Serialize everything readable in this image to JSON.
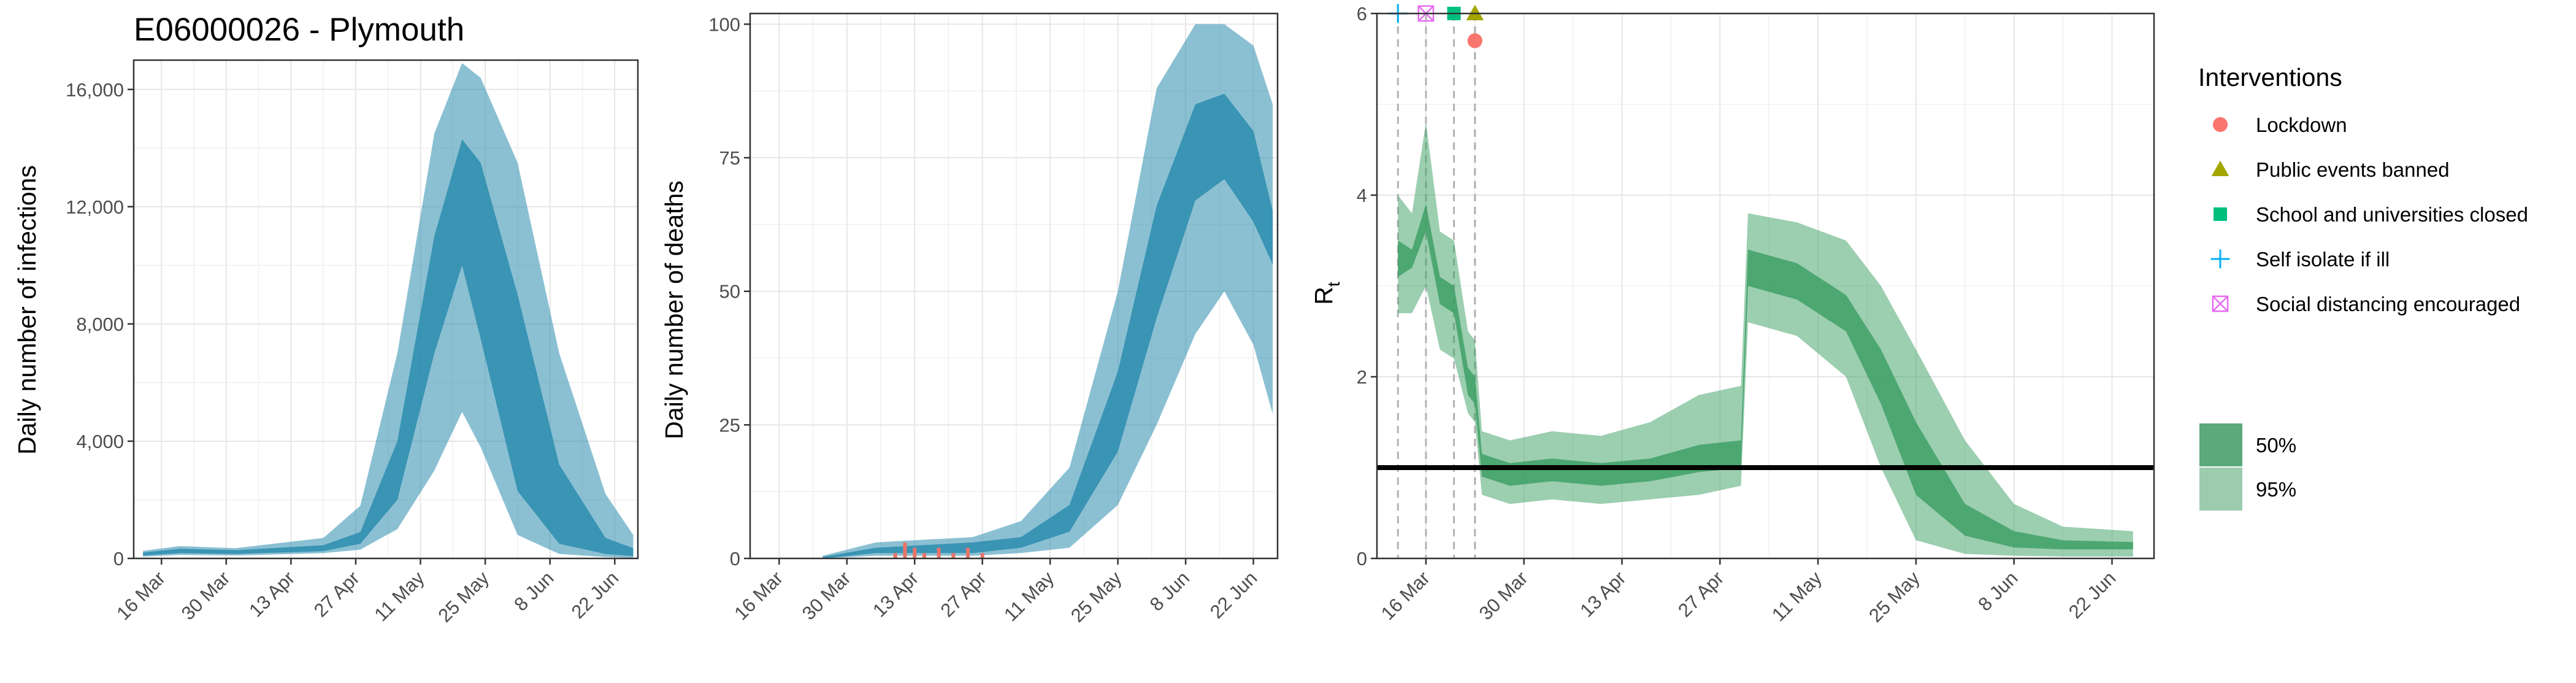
{
  "title": "E06000026 - Plymouth",
  "x_ticks": [
    "16 Mar",
    "30 Mar",
    "13 Apr",
    "27 Apr",
    "11 May",
    "25 May",
    "8 Jun",
    "22 Jun"
  ],
  "colors": {
    "infections": "#2b8cae",
    "rt": "#3a9e62",
    "observed": "#e8756a"
  },
  "chart_data": [
    {
      "type": "area",
      "title": "E06000026 - Plymouth",
      "ylabel": "Daily number of infections",
      "y_ticks": [
        "0",
        "4,000",
        "8,000",
        "12,000",
        "16,000"
      ],
      "ylim": [
        0,
        17000
      ],
      "x_range": [
        "2020-03-10",
        "2020-06-27"
      ],
      "series": [
        {
          "name": "50%",
          "x": [
            "2020-03-12",
            "2020-03-20",
            "2020-04-01",
            "2020-04-20",
            "2020-04-28",
            "2020-05-06",
            "2020-05-14",
            "2020-05-20",
            "2020-05-24",
            "2020-06-01",
            "2020-06-10",
            "2020-06-20",
            "2020-06-26"
          ],
          "low": [
            100,
            180,
            150,
            250,
            500,
            2000,
            7000,
            10000,
            7500,
            2300,
            500,
            150,
            80
          ],
          "high": [
            200,
            330,
            280,
            450,
            900,
            4000,
            11000,
            14300,
            13500,
            9000,
            3200,
            700,
            350
          ]
        },
        {
          "name": "95%",
          "x": [
            "2020-03-12",
            "2020-03-20",
            "2020-04-01",
            "2020-04-20",
            "2020-04-28",
            "2020-05-06",
            "2020-05-14",
            "2020-05-20",
            "2020-05-24",
            "2020-06-01",
            "2020-06-10",
            "2020-06-20",
            "2020-06-26"
          ],
          "low": [
            60,
            120,
            100,
            180,
            300,
            1000,
            3000,
            5000,
            3800,
            800,
            150,
            50,
            20
          ],
          "high": [
            260,
            420,
            350,
            700,
            1800,
            7000,
            14500,
            16900,
            16400,
            13500,
            7000,
            2200,
            800
          ]
        }
      ]
    },
    {
      "type": "area",
      "ylabel": "Daily number of deaths",
      "y_ticks": [
        "0",
        "25",
        "50",
        "75",
        "100"
      ],
      "ylim": [
        0,
        102
      ],
      "x_range": [
        "2020-03-10",
        "2020-06-27"
      ],
      "series": [
        {
          "name": "50%",
          "x": [
            "2020-03-25",
            "2020-04-05",
            "2020-04-25",
            "2020-05-05",
            "2020-05-15",
            "2020-05-25",
            "2020-06-02",
            "2020-06-10",
            "2020-06-16",
            "2020-06-22",
            "2020-06-26"
          ],
          "low": [
            0,
            1,
            1,
            2,
            5,
            20,
            45,
            67,
            71,
            63,
            55
          ],
          "high": [
            0.3,
            2,
            3,
            4,
            10,
            35,
            66,
            85,
            87,
            80,
            65
          ]
        },
        {
          "name": "95%",
          "x": [
            "2020-03-25",
            "2020-04-05",
            "2020-04-25",
            "2020-05-05",
            "2020-05-15",
            "2020-05-25",
            "2020-06-02",
            "2020-06-10",
            "2020-06-16",
            "2020-06-22",
            "2020-06-26"
          ],
          "low": [
            0,
            0.5,
            0.5,
            1,
            2,
            10,
            25,
            42,
            50,
            40,
            27
          ],
          "high": [
            0.5,
            3,
            4,
            7,
            17,
            50,
            88,
            100,
            100,
            96,
            85
          ]
        }
      ],
      "observed": {
        "x": [
          "2020-04-09",
          "2020-04-11",
          "2020-04-13",
          "2020-04-15",
          "2020-04-18",
          "2020-04-21",
          "2020-04-24",
          "2020-04-27"
        ],
        "y": [
          1,
          3,
          2,
          1,
          2,
          1,
          2,
          1
        ]
      }
    },
    {
      "type": "area",
      "ylabel": "R",
      "ylabel_sub": "t",
      "y_ticks": [
        "0",
        "2",
        "4",
        "6"
      ],
      "ylim": [
        0,
        6
      ],
      "x_range": [
        "2020-03-09",
        "2020-06-28"
      ],
      "reference_line": 1,
      "series": [
        {
          "name": "50%",
          "x": [
            "2020-03-12",
            "2020-03-14",
            "2020-03-16",
            "2020-03-18",
            "2020-03-20",
            "2020-03-22",
            "2020-03-23",
            "2020-03-24",
            "2020-03-28",
            "2020-04-03",
            "2020-04-10",
            "2020-04-17",
            "2020-04-24",
            "2020-04-30",
            "2020-05-01",
            "2020-05-08",
            "2020-05-15",
            "2020-05-20",
            "2020-05-25",
            "2020-06-01",
            "2020-06-08",
            "2020-06-15",
            "2020-06-25"
          ],
          "low": [
            3.1,
            3.2,
            3.6,
            2.8,
            2.7,
            1.8,
            1.7,
            0.9,
            0.8,
            0.85,
            0.8,
            0.85,
            0.95,
            1.0,
            3.0,
            2.85,
            2.5,
            1.7,
            0.7,
            0.25,
            0.12,
            0.1,
            0.1
          ],
          "high": [
            3.5,
            3.4,
            3.9,
            3.1,
            3.0,
            2.1,
            2.0,
            1.15,
            1.05,
            1.1,
            1.05,
            1.1,
            1.25,
            1.3,
            3.4,
            3.25,
            2.9,
            2.3,
            1.5,
            0.6,
            0.3,
            0.2,
            0.18
          ]
        },
        {
          "name": "95%",
          "x": [
            "2020-03-12",
            "2020-03-14",
            "2020-03-16",
            "2020-03-18",
            "2020-03-20",
            "2020-03-22",
            "2020-03-23",
            "2020-03-24",
            "2020-03-28",
            "2020-04-03",
            "2020-04-10",
            "2020-04-17",
            "2020-04-24",
            "2020-04-30",
            "2020-05-01",
            "2020-05-08",
            "2020-05-15",
            "2020-05-20",
            "2020-05-25",
            "2020-06-01",
            "2020-06-08",
            "2020-06-15",
            "2020-06-25"
          ],
          "low": [
            2.7,
            2.7,
            3.0,
            2.3,
            2.2,
            1.6,
            1.5,
            0.7,
            0.6,
            0.65,
            0.6,
            0.65,
            0.7,
            0.8,
            2.6,
            2.45,
            2.0,
            1.0,
            0.2,
            0.05,
            0.03,
            0.02,
            0.02
          ],
          "high": [
            4.0,
            3.8,
            4.8,
            3.6,
            3.5,
            2.5,
            2.4,
            1.4,
            1.3,
            1.4,
            1.35,
            1.5,
            1.8,
            1.9,
            3.8,
            3.7,
            3.5,
            3.0,
            2.3,
            1.3,
            0.6,
            0.35,
            0.3
          ]
        }
      ],
      "interventions": [
        {
          "name": "Lockdown",
          "date": "2020-03-23",
          "y": 5.7,
          "symbol": "circle",
          "color": "#f8766d"
        },
        {
          "name": "Public events banned",
          "date": "2020-03-23",
          "y": 6.0,
          "symbol": "triangle",
          "color": "#a3a500"
        },
        {
          "name": "School and universities closed",
          "date": "2020-03-20",
          "y": 6.0,
          "symbol": "square",
          "color": "#00bf7d"
        },
        {
          "name": "Self isolate if ill",
          "date": "2020-03-12",
          "y": 6.0,
          "symbol": "plus",
          "color": "#00b0f6"
        },
        {
          "name": "Social distancing encouraged",
          "date": "2020-03-16",
          "y": 6.0,
          "symbol": "boxx",
          "color": "#e76bf3"
        }
      ]
    }
  ],
  "legend": {
    "title": "Interventions",
    "items": [
      {
        "label": "Lockdown",
        "symbol": "circle",
        "color": "#f8766d"
      },
      {
        "label": "Public events banned",
        "symbol": "triangle",
        "color": "#a3a500"
      },
      {
        "label": "School and universities closed",
        "symbol": "square",
        "color": "#00bf7d"
      },
      {
        "label": "Self isolate if ill",
        "symbol": "plus",
        "color": "#00b0f6"
      },
      {
        "label": "Social distancing encouraged",
        "symbol": "boxx",
        "color": "#e76bf3"
      }
    ],
    "bands": [
      {
        "label": "50%",
        "color": "#5ca97a"
      },
      {
        "label": "95%",
        "color": "#9ccbad"
      }
    ]
  }
}
